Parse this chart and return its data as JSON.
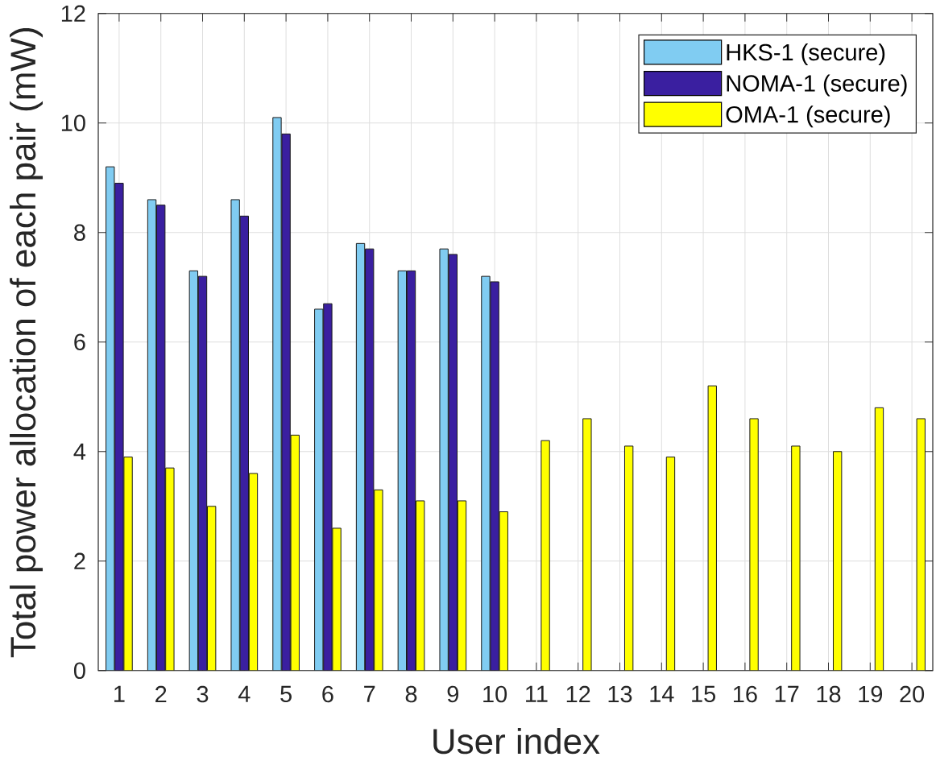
{
  "chart_data": {
    "type": "bar",
    "xlabel": "User index",
    "ylabel": "Total power allocation of each pair (mW)",
    "categories": [
      "1",
      "2",
      "3",
      "4",
      "5",
      "6",
      "7",
      "8",
      "9",
      "10",
      "11",
      "12",
      "13",
      "14",
      "15",
      "16",
      "17",
      "18",
      "19",
      "20"
    ],
    "series": [
      {
        "name": "HKS-1 (secure)",
        "color": "#80ccf2",
        "values": [
          9.2,
          8.6,
          7.3,
          8.6,
          10.1,
          6.6,
          7.8,
          7.3,
          7.7,
          7.2,
          null,
          null,
          null,
          null,
          null,
          null,
          null,
          null,
          null,
          null
        ]
      },
      {
        "name": "NOMA-1 (secure)",
        "color": "#3a1fa0",
        "values": [
          8.9,
          8.5,
          7.2,
          8.3,
          9.8,
          6.7,
          7.7,
          7.3,
          7.6,
          7.1,
          null,
          null,
          null,
          null,
          null,
          null,
          null,
          null,
          null,
          null
        ]
      },
      {
        "name": "OMA-1 (secure)",
        "color": "#ffff00",
        "values": [
          3.9,
          3.7,
          3.0,
          3.6,
          4.3,
          2.6,
          3.3,
          3.1,
          3.1,
          2.9,
          4.2,
          4.6,
          4.1,
          3.9,
          5.2,
          4.6,
          4.1,
          4.0,
          4.8,
          4.6
        ]
      }
    ],
    "ylim": [
      0,
      12
    ],
    "yticks": [
      0,
      2,
      4,
      6,
      8,
      10,
      12
    ],
    "grid": true,
    "legend": "top right"
  }
}
